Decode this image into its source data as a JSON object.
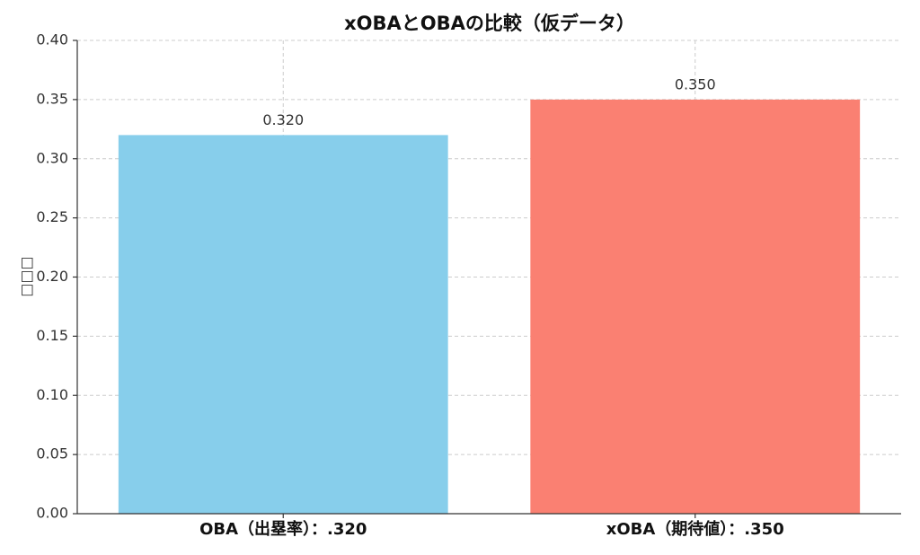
{
  "chart_data": {
    "type": "bar",
    "title": "xOBAとOBAの比較（仮データ）",
    "y_label": "□□□",
    "categories": [
      "OBA（出塁率）：.320",
      "xOBA（期待値）：.350"
    ],
    "values": [
      0.32,
      0.35
    ],
    "value_labels": [
      "0.320",
      "0.350"
    ],
    "colors": [
      "#87ceeb",
      "#fa8072"
    ],
    "ylim": [
      0,
      0.4
    ],
    "yticks": [
      {
        "value": 0,
        "label": "0.00"
      },
      {
        "value": 0.05,
        "label": "0.05"
      },
      {
        "value": 0.1,
        "label": "0.10"
      },
      {
        "value": 0.15,
        "label": "0.15"
      },
      {
        "value": 0.2,
        "label": "0.20"
      },
      {
        "value": 0.25,
        "label": "0.25"
      },
      {
        "value": 0.3,
        "label": "0.30"
      },
      {
        "value": 0.35,
        "label": "0.35"
      },
      {
        "value": 0.4,
        "label": "0.40"
      }
    ],
    "grid": true
  }
}
